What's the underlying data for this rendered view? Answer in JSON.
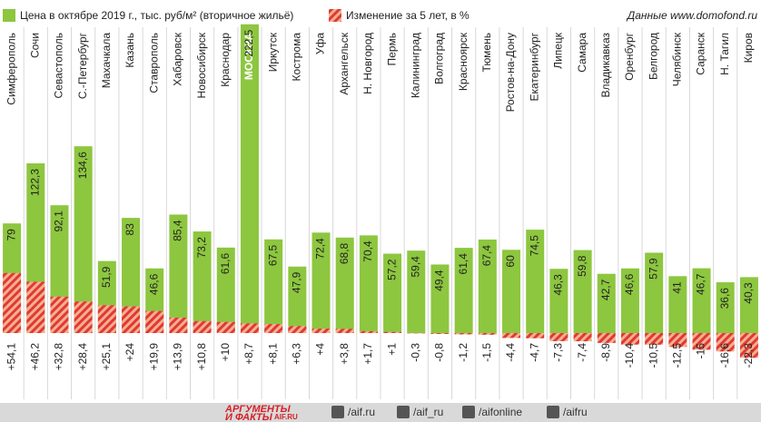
{
  "chart_data": {
    "type": "bar",
    "legend": [
      "Цена в октябре 2019 г., тыс. руб/м² (вторичное жильё)",
      "Изменение за 5 лет, в %"
    ],
    "source": "Данные www.domofond.ru",
    "highlight": "МОСКВА",
    "categories": [
      "Симферополь",
      "Сочи",
      "Севастополь",
      "С.-Петербург",
      "Махачкала",
      "Казань",
      "Ставрополь",
      "Хабаровск",
      "Новосибирск",
      "Краснодар",
      "МОСКВА",
      "Иркутск",
      "Кострома",
      "Уфа",
      "Архангельск",
      "Н. Новгород",
      "Пермь",
      "Калининград",
      "Волгоград",
      "Красноярск",
      "Тюмень",
      "Ростов-на-Дону",
      "Екатеринбург",
      "Липецк",
      "Самара",
      "Владикавказ",
      "Оренбург",
      "Белгород",
      "Челябинск",
      "Саранск",
      "Н. Тагил",
      "Киров"
    ],
    "series": [
      {
        "name": "Цена в октябре 2019 г., тыс. руб/м² (вторичное жильё)",
        "color": "#8dc63f",
        "values": [
          79,
          122.3,
          92.1,
          134.6,
          51.9,
          83,
          46.6,
          85.4,
          73.2,
          61.6,
          222.5,
          67.5,
          47.9,
          72.4,
          68.8,
          70.4,
          57.2,
          59.4,
          49.4,
          61.4,
          67.4,
          60,
          74.5,
          46.3,
          59.8,
          42.7,
          46.6,
          57.9,
          41,
          46.7,
          36.6,
          40.3
        ],
        "value_labels": [
          "79",
          "122,3",
          "92,1",
          "134,6",
          "51,9",
          "83",
          "46,6",
          "85,4",
          "73,2",
          "61,6",
          "222,5",
          "67,5",
          "47,9",
          "72,4",
          "68,8",
          "70,4",
          "57,2",
          "59,4",
          "49,4",
          "61,4",
          "67,4",
          "60",
          "74,5",
          "46,3",
          "59,8",
          "42,7",
          "46,6",
          "57,9",
          "41",
          "46,7",
          "36,6",
          "40,3"
        ]
      },
      {
        "name": "Изменение за 5 лет, в %",
        "color": "#e0383a",
        "axis": "y2",
        "values": [
          54.1,
          46.2,
          32.8,
          28.4,
          25.1,
          24,
          19.9,
          13.9,
          10.8,
          10,
          8.7,
          8.1,
          6.3,
          4,
          3.8,
          1.7,
          1,
          -0.3,
          -0.8,
          -1.2,
          -1.5,
          -4.4,
          -4.7,
          -7.3,
          -7.4,
          -8.9,
          -10.4,
          -10.5,
          -12.5,
          -15,
          -16.6,
          -22.3
        ],
        "value_labels": [
          "+54,1",
          "+46,2",
          "+32,8",
          "+28,4",
          "+25,1",
          "+24",
          "+19,9",
          "+13,9",
          "+10,8",
          "+10",
          "+8,7",
          "+8,1",
          "+6,3",
          "+4",
          "+3,8",
          "+1,7",
          "+1",
          "-0,3",
          "-0,8",
          "-1,2",
          "-1,5",
          "-4,4",
          "-4,7",
          "-7,3",
          "-7,4",
          "-8,9",
          "-10,4",
          "-10,5",
          "-12,5",
          "-15",
          "-16,6",
          "-22,3"
        ]
      }
    ],
    "ylim": [
      0,
      240
    ],
    "y2lim": [
      0,
      300
    ]
  },
  "footer": {
    "brand": [
      "АРГУМЕНТЫ",
      "И ФАКТЫ",
      "AIF.RU"
    ],
    "links": [
      "/aif.ru",
      "/aif_ru",
      "/aifonline",
      "/aifru"
    ]
  }
}
